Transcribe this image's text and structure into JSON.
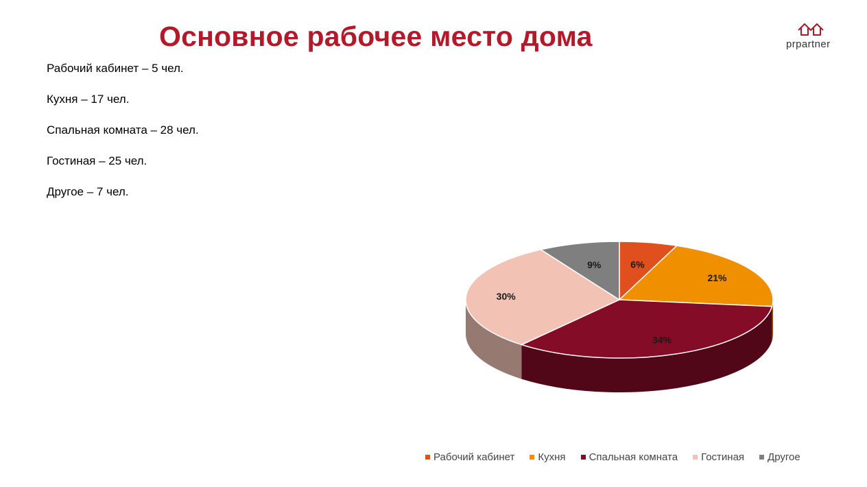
{
  "slide": {
    "title": "Основное рабочее место дома",
    "logo_text": "prpartner",
    "facts": [
      "Рабочий кабинет – 5 чел.",
      "Кухня – 17 чел.",
      "Спальная комната – 28 чел.",
      "Гостиная – 25 чел.",
      "Другое – 7 чел."
    ]
  },
  "colors": {
    "title": "#b21a2a",
    "logo": "#a3192a"
  },
  "chart_data": {
    "type": "pie",
    "style": "3d",
    "title": "",
    "categories": [
      "Рабочий кабинет",
      "Кухня",
      "Спальная комната",
      "Гостиная",
      "Другое"
    ],
    "values": [
      5,
      17,
      28,
      25,
      7
    ],
    "labels": [
      "6%",
      "21%",
      "34%",
      "30%",
      "9%"
    ],
    "colors": [
      "#e0501e",
      "#f09000",
      "#840c26",
      "#f2c3b5",
      "#7f7f7f"
    ],
    "legend_position": "bottom"
  }
}
